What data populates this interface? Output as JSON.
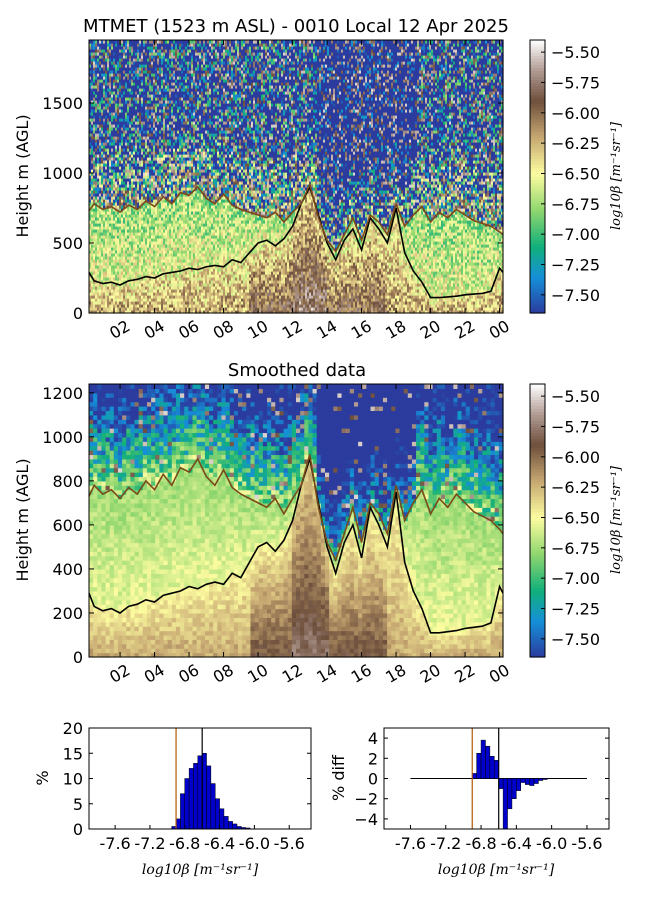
{
  "figure": {
    "title": "MTMET (1523 m ASL) - 0010 Local 12 Apr 2025",
    "subtitle": "Smoothed data"
  },
  "colorbar": {
    "label": "log10β [m⁻¹sr⁻¹]",
    "ticks": [
      "−5.50",
      "−5.75",
      "−6.00",
      "−6.25",
      "−6.50",
      "−6.75",
      "−7.00",
      "−7.25",
      "−7.50"
    ],
    "range": [
      -7.65,
      -5.4
    ],
    "colormap_stops": [
      {
        "v": -7.65,
        "c": "#2b3b9e"
      },
      {
        "v": -7.35,
        "c": "#1590d8"
      },
      {
        "v": -7.1,
        "c": "#12b07a"
      },
      {
        "v": -6.8,
        "c": "#8fd66e"
      },
      {
        "v": -6.5,
        "c": "#fdfca0"
      },
      {
        "v": -6.2,
        "c": "#c7a872"
      },
      {
        "v": -5.9,
        "c": "#6e4f3c"
      },
      {
        "v": -5.65,
        "c": "#b09a92"
      },
      {
        "v": -5.4,
        "c": "#ffffff"
      }
    ]
  },
  "chart_data": [
    {
      "type": "heatmap",
      "title": "MTMET (1523 m ASL) - 0010 Local 12 Apr 2025",
      "ylabel": "Height m (AGL)",
      "ylim": [
        0,
        1950
      ],
      "yticks": [
        "0",
        "500",
        "1000",
        "1500"
      ],
      "xticks": [
        "02",
        "04",
        "06",
        "08",
        "10",
        "12",
        "14",
        "16",
        "18",
        "20",
        "22",
        "00"
      ],
      "x_hours_range": [
        0.2,
        24.2
      ],
      "colorbar_label": "log10β [m⁻¹sr⁻¹]",
      "series": [
        {
          "color": "#000000",
          "x": [
            0.2,
            0.5,
            1,
            1.5,
            2,
            2.5,
            3,
            3.5,
            4,
            4.5,
            5,
            5.5,
            6,
            6.5,
            7,
            7.5,
            8,
            8.5,
            9,
            9.5,
            10,
            10.5,
            11,
            11.5,
            12,
            12.5,
            13,
            13.5,
            14,
            14.5,
            15,
            15.5,
            16,
            16.5,
            17,
            17.5,
            18,
            18.5,
            19,
            19.5,
            20,
            20.5,
            21,
            21.5,
            22,
            22.5,
            23,
            23.5,
            24,
            24.2
          ],
          "y": [
            290,
            230,
            210,
            220,
            200,
            230,
            240,
            260,
            250,
            280,
            290,
            300,
            320,
            310,
            330,
            340,
            330,
            380,
            360,
            430,
            500,
            520,
            480,
            530,
            620,
            780,
            900,
            700,
            500,
            380,
            520,
            600,
            450,
            680,
            600,
            500,
            750,
            430,
            300,
            220,
            110,
            110,
            115,
            120,
            130,
            135,
            140,
            155,
            320,
            290
          ]
        },
        {
          "color": "#7a4a1a",
          "x": [
            0.2,
            0.5,
            1,
            1.5,
            2,
            2.5,
            3,
            3.5,
            4,
            4.5,
            5,
            5.5,
            6,
            6.5,
            7,
            7.5,
            8,
            8.5,
            9,
            9.5,
            10,
            10.5,
            11,
            11.5,
            12,
            12.5,
            13,
            13.5,
            14,
            14.5,
            15,
            15.5,
            16,
            16.5,
            17,
            17.5,
            18,
            18.5,
            19,
            19.5,
            20,
            20.5,
            21,
            21.5,
            22,
            22.5,
            23,
            23.5,
            24,
            24.2
          ],
          "y": [
            730,
            780,
            740,
            760,
            720,
            770,
            740,
            800,
            760,
            830,
            780,
            860,
            840,
            900,
            820,
            780,
            850,
            770,
            740,
            720,
            700,
            680,
            720,
            650,
            720,
            780,
            920,
            680,
            520,
            440,
            560,
            680,
            520,
            700,
            650,
            560,
            780,
            620,
            700,
            760,
            650,
            720,
            680,
            740,
            700,
            660,
            640,
            620,
            580,
            560
          ]
        }
      ]
    },
    {
      "type": "heatmap",
      "title": "Smoothed data",
      "ylabel": "Height m (AGL)",
      "ylim": [
        0,
        1240
      ],
      "yticks": [
        "0",
        "200",
        "400",
        "600",
        "800",
        "1000",
        "1200"
      ],
      "xticks": [
        "02",
        "04",
        "06",
        "08",
        "10",
        "12",
        "14",
        "16",
        "18",
        "20",
        "22",
        "00"
      ],
      "x_hours_range": [
        0.2,
        24.2
      ],
      "colorbar_label": "log10β [m⁻¹sr⁻¹]",
      "series": [
        {
          "color": "#000000",
          "x": [
            0.2,
            0.5,
            1,
            1.5,
            2,
            2.5,
            3,
            3.5,
            4,
            4.5,
            5,
            5.5,
            6,
            6.5,
            7,
            7.5,
            8,
            8.5,
            9,
            9.5,
            10,
            10.5,
            11,
            11.5,
            12,
            12.5,
            13,
            13.5,
            14,
            14.5,
            15,
            15.5,
            16,
            16.5,
            17,
            17.5,
            18,
            18.5,
            19,
            19.5,
            20,
            20.5,
            21,
            21.5,
            22,
            22.5,
            23,
            23.5,
            24,
            24.2
          ],
          "y": [
            290,
            230,
            210,
            220,
            200,
            230,
            240,
            260,
            250,
            280,
            290,
            300,
            320,
            310,
            330,
            340,
            330,
            380,
            360,
            430,
            500,
            520,
            480,
            530,
            620,
            780,
            900,
            700,
            500,
            380,
            520,
            600,
            450,
            680,
            600,
            500,
            750,
            430,
            300,
            220,
            110,
            110,
            115,
            120,
            130,
            135,
            140,
            155,
            320,
            290
          ]
        },
        {
          "color": "#7a4a1a",
          "x": [
            0.2,
            0.5,
            1,
            1.5,
            2,
            2.5,
            3,
            3.5,
            4,
            4.5,
            5,
            5.5,
            6,
            6.5,
            7,
            7.5,
            8,
            8.5,
            9,
            9.5,
            10,
            10.5,
            11,
            11.5,
            12,
            12.5,
            13,
            13.5,
            14,
            14.5,
            15,
            15.5,
            16,
            16.5,
            17,
            17.5,
            18,
            18.5,
            19,
            19.5,
            20,
            20.5,
            21,
            21.5,
            22,
            22.5,
            23,
            23.5,
            24,
            24.2
          ],
          "y": [
            730,
            780,
            740,
            760,
            720,
            770,
            740,
            800,
            760,
            830,
            780,
            860,
            840,
            900,
            820,
            780,
            850,
            770,
            740,
            720,
            700,
            680,
            720,
            650,
            720,
            780,
            920,
            680,
            520,
            440,
            560,
            680,
            520,
            700,
            650,
            560,
            780,
            620,
            700,
            760,
            650,
            720,
            680,
            740,
            700,
            660,
            640,
            620,
            580,
            560
          ]
        }
      ]
    },
    {
      "type": "bar",
      "ylabel": "%",
      "xlabel": "log10β [m⁻¹sr⁻¹]",
      "xlim": [
        -7.9,
        -5.35
      ],
      "ylim": [
        0,
        20
      ],
      "yticks": [
        "0",
        "5",
        "10",
        "15",
        "20"
      ],
      "xticks": [
        "-7.6",
        "-7.2",
        "-6.8",
        "-6.4",
        "-6.0",
        "-5.6"
      ],
      "bin_width": 0.05,
      "x": [
        -6.95,
        -6.9,
        -6.85,
        -6.8,
        -6.75,
        -6.7,
        -6.65,
        -6.6,
        -6.55,
        -6.5,
        -6.45,
        -6.4,
        -6.35,
        -6.3,
        -6.25,
        -6.2,
        -6.15,
        -6.1
      ],
      "values": [
        0.5,
        2,
        7,
        10,
        12,
        13,
        14.5,
        15,
        12.5,
        9,
        6,
        4,
        2.5,
        1.5,
        1,
        0.5,
        0.3,
        0.2
      ],
      "vlines": [
        {
          "x": -6.9,
          "color": "#b35900"
        },
        {
          "x": -6.6,
          "color": "#000000"
        }
      ]
    },
    {
      "type": "bar",
      "ylabel": "% diff",
      "xlabel": "log10β [m⁻¹sr⁻¹]",
      "xlim": [
        -7.9,
        -5.35
      ],
      "ylim": [
        -5,
        5
      ],
      "yticks": [
        "−4",
        "−2",
        "0",
        "2",
        "4"
      ],
      "xticks": [
        "-7.6",
        "-7.2",
        "-6.8",
        "-6.4",
        "-6.0",
        "-5.6"
      ],
      "bin_width": 0.05,
      "line_range": [
        -7.6,
        -5.6
      ],
      "x": [
        -6.9,
        -6.85,
        -6.8,
        -6.75,
        -6.7,
        -6.65,
        -6.6,
        -6.55,
        -6.5,
        -6.45,
        -6.4,
        -6.35,
        -6.3,
        -6.25,
        -6.2,
        -6.15,
        -6.1
      ],
      "values": [
        0.5,
        2.5,
        3.8,
        3.2,
        2.2,
        1.8,
        -1,
        -5,
        -3,
        -2,
        -1.2,
        -0.4,
        -0.6,
        -0.7,
        -0.5,
        -0.2,
        -0.1
      ],
      "vlines": [
        {
          "x": -6.9,
          "color": "#b35900"
        },
        {
          "x": -6.6,
          "color": "#000000"
        }
      ]
    }
  ]
}
